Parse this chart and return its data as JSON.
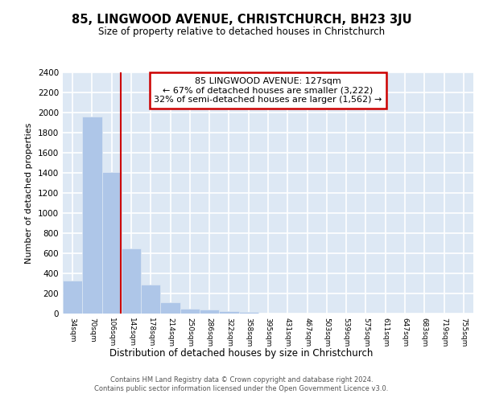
{
  "title": "85, LINGWOOD AVENUE, CHRISTCHURCH, BH23 3JU",
  "subtitle": "Size of property relative to detached houses in Christchurch",
  "xlabel": "Distribution of detached houses by size in Christchurch",
  "ylabel": "Number of detached properties",
  "bar_color": "#aec6e8",
  "bar_edge_color": "#aec6e8",
  "background_color": "#dde8f4",
  "grid_color": "#ffffff",
  "fig_background": "#ffffff",
  "categories": [
    "34sqm",
    "70sqm",
    "106sqm",
    "142sqm",
    "178sqm",
    "214sqm",
    "250sqm",
    "286sqm",
    "322sqm",
    "358sqm",
    "395sqm",
    "431sqm",
    "467sqm",
    "503sqm",
    "539sqm",
    "575sqm",
    "611sqm",
    "647sqm",
    "683sqm",
    "719sqm",
    "755sqm"
  ],
  "values": [
    325,
    1960,
    1410,
    650,
    285,
    110,
    50,
    42,
    27,
    20,
    0,
    0,
    0,
    0,
    0,
    0,
    0,
    0,
    0,
    0,
    0
  ],
  "ylim": [
    0,
    2400
  ],
  "yticks": [
    0,
    200,
    400,
    600,
    800,
    1000,
    1200,
    1400,
    1600,
    1800,
    2000,
    2200,
    2400
  ],
  "red_line_x": 2.47,
  "annotation_title": "85 LINGWOOD AVENUE: 127sqm",
  "annotation_line1": "← 67% of detached houses are smaller (3,222)",
  "annotation_line2": "32% of semi-detached houses are larger (1,562) →",
  "annotation_box_color": "#ffffff",
  "annotation_border_color": "#cc0000",
  "property_line_color": "#cc0000",
  "footer_line1": "Contains HM Land Registry data © Crown copyright and database right 2024.",
  "footer_line2": "Contains public sector information licensed under the Open Government Licence v3.0."
}
